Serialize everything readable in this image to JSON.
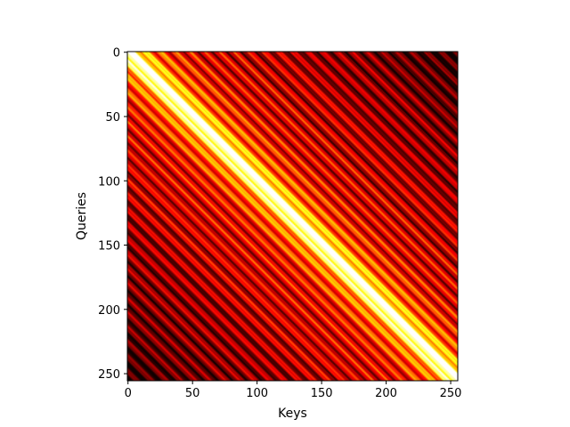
{
  "chart_data": {
    "type": "heatmap",
    "title": "",
    "xlabel": "Keys",
    "ylabel": "Queries",
    "size": 256,
    "xlim": [
      0,
      255
    ],
    "ylim": [
      255,
      0
    ],
    "x_ticks": [
      0,
      50,
      100,
      150,
      200,
      250
    ],
    "y_ticks": [
      0,
      50,
      100,
      150,
      200,
      250
    ],
    "colormap": "hot",
    "grid": false,
    "pattern": "Toeplitz (constant along diagonals); maximum on main diagonal, banded decay toward off-diagonal corners"
  }
}
